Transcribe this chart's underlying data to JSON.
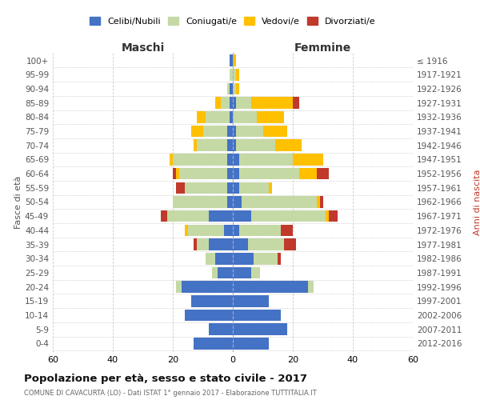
{
  "age_groups": [
    "0-4",
    "5-9",
    "10-14",
    "15-19",
    "20-24",
    "25-29",
    "30-34",
    "35-39",
    "40-44",
    "45-49",
    "50-54",
    "55-59",
    "60-64",
    "65-69",
    "70-74",
    "75-79",
    "80-84",
    "85-89",
    "90-94",
    "95-99",
    "100+"
  ],
  "birth_years": [
    "2012-2016",
    "2007-2011",
    "2002-2006",
    "1997-2001",
    "1992-1996",
    "1987-1991",
    "1982-1986",
    "1977-1981",
    "1972-1976",
    "1967-1971",
    "1962-1966",
    "1957-1961",
    "1952-1956",
    "1947-1951",
    "1942-1946",
    "1937-1941",
    "1932-1936",
    "1927-1931",
    "1922-1926",
    "1917-1921",
    "≤ 1916"
  ],
  "male": {
    "celibi": [
      13,
      8,
      16,
      14,
      17,
      5,
      6,
      8,
      3,
      8,
      2,
      2,
      2,
      2,
      2,
      2,
      1,
      1,
      1,
      0,
      1
    ],
    "coniugati": [
      0,
      0,
      0,
      0,
      2,
      2,
      3,
      4,
      12,
      14,
      18,
      14,
      16,
      18,
      10,
      8,
      8,
      3,
      1,
      1,
      0
    ],
    "vedovi": [
      0,
      0,
      0,
      0,
      0,
      0,
      0,
      0,
      1,
      0,
      0,
      0,
      1,
      1,
      1,
      4,
      3,
      2,
      0,
      0,
      0
    ],
    "divorziati": [
      0,
      0,
      0,
      0,
      0,
      0,
      0,
      1,
      0,
      2,
      0,
      3,
      1,
      0,
      0,
      0,
      0,
      0,
      0,
      0,
      0
    ]
  },
  "female": {
    "nubili": [
      12,
      18,
      16,
      12,
      25,
      6,
      7,
      5,
      2,
      6,
      3,
      2,
      2,
      2,
      1,
      1,
      0,
      1,
      0,
      0,
      0
    ],
    "coniugate": [
      0,
      0,
      0,
      0,
      2,
      3,
      8,
      12,
      14,
      25,
      25,
      10,
      20,
      18,
      13,
      9,
      8,
      5,
      1,
      1,
      0
    ],
    "vedove": [
      0,
      0,
      0,
      0,
      0,
      0,
      0,
      0,
      0,
      1,
      1,
      1,
      6,
      10,
      9,
      8,
      9,
      14,
      1,
      1,
      1
    ],
    "divorziate": [
      0,
      0,
      0,
      0,
      0,
      0,
      1,
      4,
      4,
      3,
      1,
      0,
      4,
      0,
      0,
      0,
      0,
      2,
      0,
      0,
      0
    ]
  },
  "colors": {
    "celibi": "#4472c4",
    "coniugati": "#c5d9a5",
    "vedovi": "#ffc000",
    "divorziati": "#c0392b"
  },
  "legend_labels": [
    "Celibi/Nubili",
    "Coniugati/e",
    "Vedovi/e",
    "Divorziati/e"
  ],
  "title": "Popolazione per età, sesso e stato civile - 2017",
  "subtitle": "COMUNE DI CAVACURTA (LO) - Dati ISTAT 1° gennaio 2017 - Elaborazione TUTTITALIA.IT",
  "xlabel_left": "Maschi",
  "xlabel_right": "Femmine",
  "ylabel_left": "Fasce di età",
  "ylabel_right": "Anni di nascita",
  "xlim": 60,
  "background_color": "#ffffff",
  "grid_color": "#cccccc"
}
